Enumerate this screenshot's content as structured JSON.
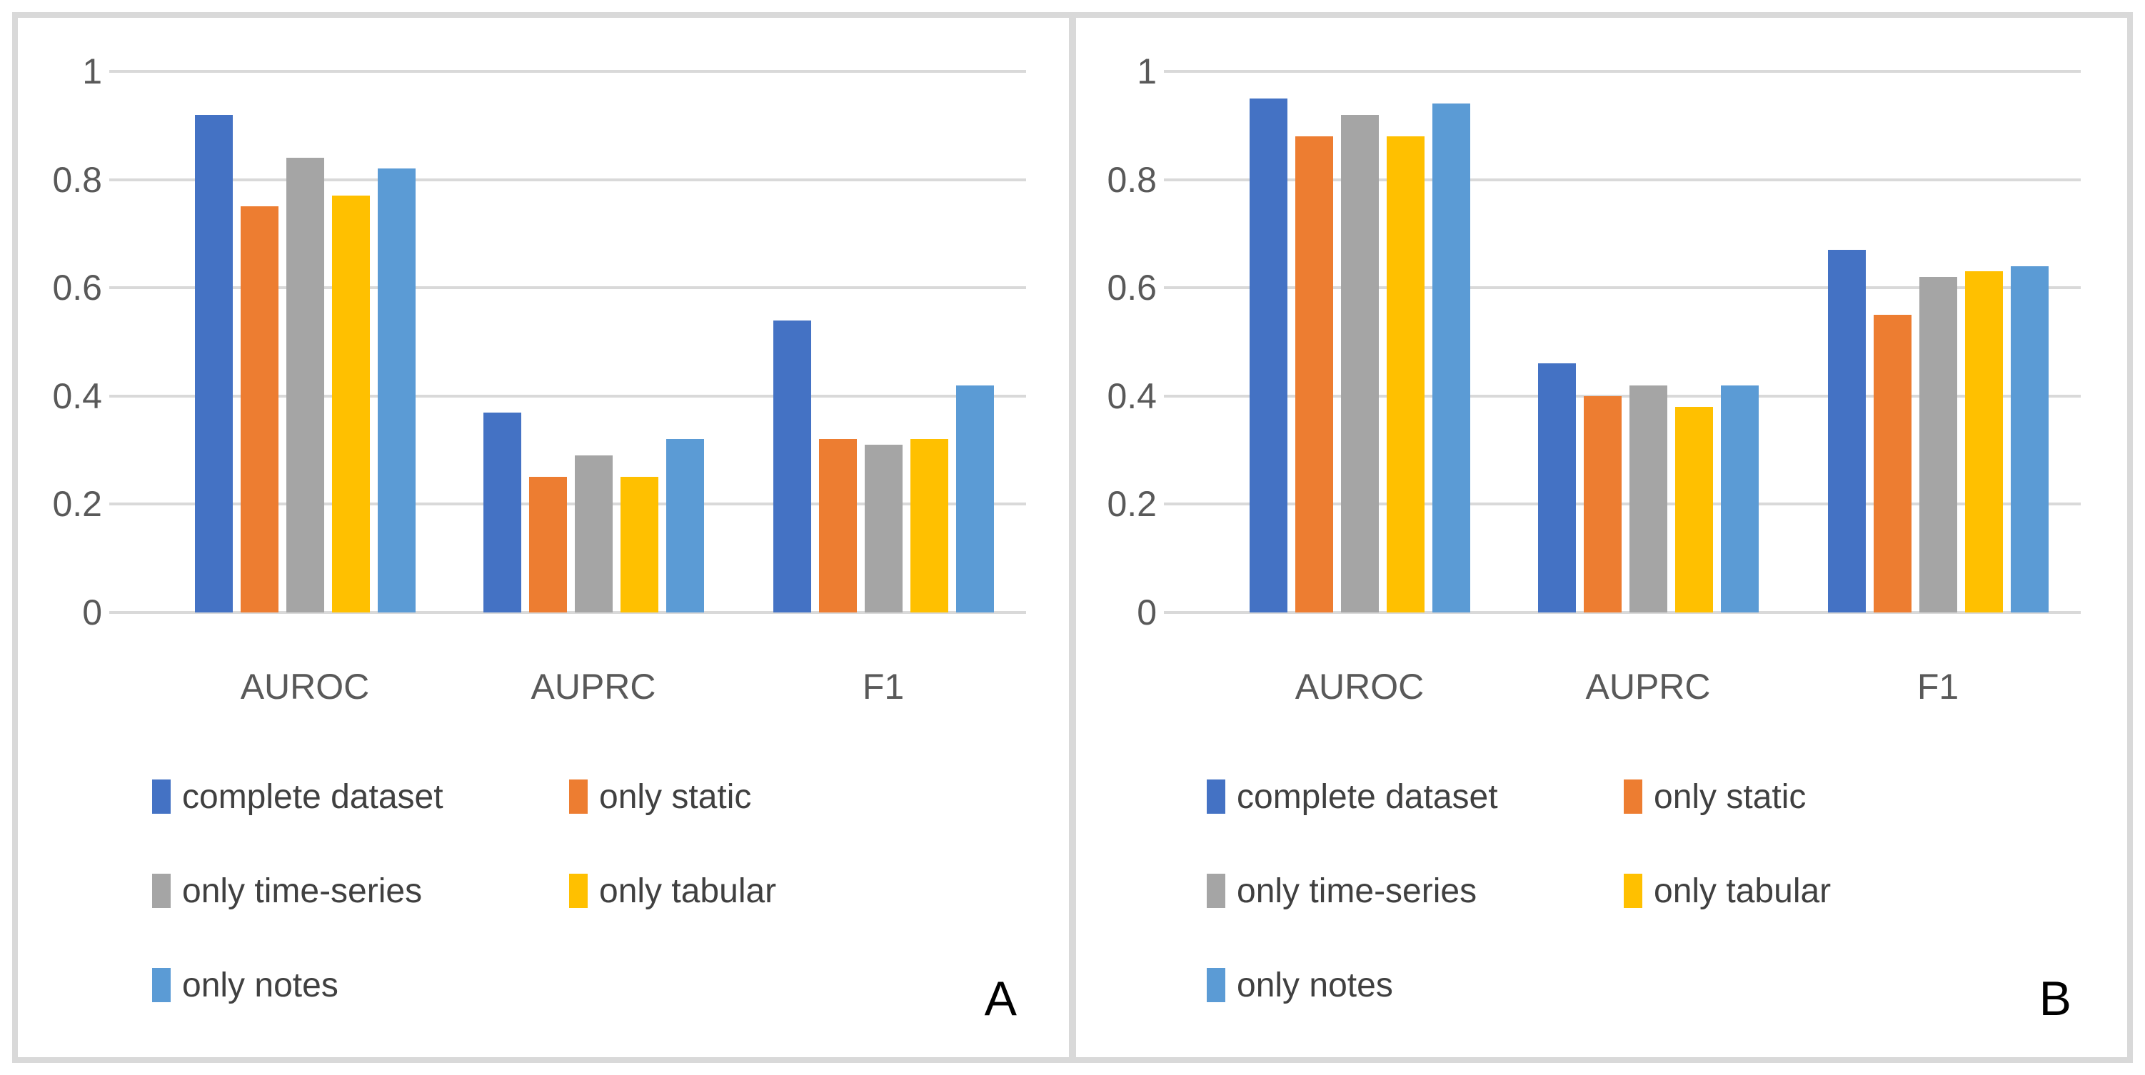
{
  "colors": {
    "series": [
      "#4472C4",
      "#ED7D31",
      "#A5A5A5",
      "#FFC000",
      "#5B9BD5"
    ],
    "gridline": "#D9D9D9",
    "frame_border": "#D9D9D9",
    "axis_text": "#595959",
    "legend_text": "#404040",
    "panel_letter": "#000000",
    "background": "#FFFFFF"
  },
  "chart_data": [
    {
      "type": "bar",
      "panel_label": "A",
      "title": "",
      "xlabel": "",
      "ylabel": "",
      "categories": [
        "AUROC",
        "AUPRC",
        "F1"
      ],
      "series": [
        {
          "name": "complete dataset",
          "values": [
            0.92,
            0.37,
            0.54
          ]
        },
        {
          "name": "only static",
          "values": [
            0.75,
            0.25,
            0.32
          ]
        },
        {
          "name": "only time-series",
          "values": [
            0.84,
            0.29,
            0.31
          ]
        },
        {
          "name": "only tabular",
          "values": [
            0.77,
            0.25,
            0.32
          ]
        },
        {
          "name": "only notes",
          "values": [
            0.82,
            0.32,
            0.42
          ]
        }
      ],
      "ylim": [
        0,
        1
      ],
      "yticks": [
        "0",
        "0.2",
        "0.4",
        "0.6",
        "0.8",
        "1"
      ],
      "grid": "horizontal",
      "legend_position": "bottom-left"
    },
    {
      "type": "bar",
      "panel_label": "B",
      "title": "",
      "xlabel": "",
      "ylabel": "",
      "categories": [
        "AUROC",
        "AUPRC",
        "F1"
      ],
      "series": [
        {
          "name": "complete dataset",
          "values": [
            0.95,
            0.46,
            0.67
          ]
        },
        {
          "name": "only static",
          "values": [
            0.88,
            0.4,
            0.55
          ]
        },
        {
          "name": "only time-series",
          "values": [
            0.92,
            0.42,
            0.62
          ]
        },
        {
          "name": "only tabular",
          "values": [
            0.88,
            0.38,
            0.63
          ]
        },
        {
          "name": "only notes",
          "values": [
            0.94,
            0.42,
            0.64
          ]
        }
      ],
      "ylim": [
        0,
        1
      ],
      "yticks": [
        "0",
        "0.2",
        "0.4",
        "0.6",
        "0.8",
        "1"
      ],
      "grid": "horizontal",
      "legend_position": "bottom-left"
    }
  ]
}
